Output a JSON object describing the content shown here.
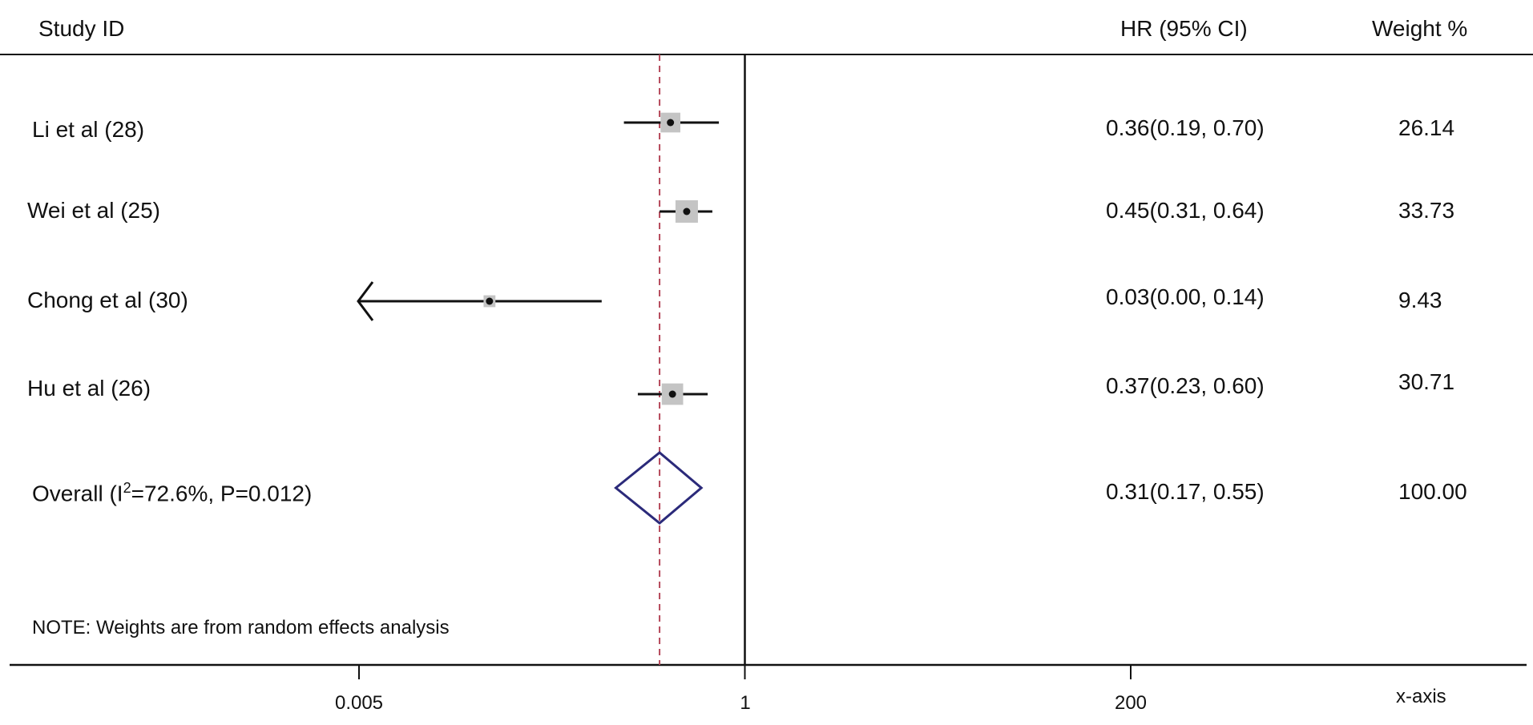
{
  "chart_data": {
    "type": "forest",
    "headers": {
      "study": "Study ID",
      "effect": "HR (95% CI)",
      "weight": "Weight %"
    },
    "x_scale": "log",
    "xlim": [
      0.005,
      200
    ],
    "x_ticks": [
      {
        "value": 0.005,
        "label": "0.005"
      },
      {
        "value": 1,
        "label": "1"
      },
      {
        "value": 200,
        "label": "200"
      }
    ],
    "xlabel": "x-axis",
    "reference_line": 1,
    "overall_line": 0.31,
    "studies": [
      {
        "label": "Li et al (28)",
        "hr": 0.36,
        "lo": 0.19,
        "hi": 0.7,
        "effect_text": "0.36(0.19, 0.70)",
        "weight": 26.14,
        "weight_text": "26.14"
      },
      {
        "label": "Wei et al (25)",
        "hr": 0.45,
        "lo": 0.31,
        "hi": 0.64,
        "effect_text": "0.45(0.31, 0.64)",
        "weight": 33.73,
        "weight_text": "33.73"
      },
      {
        "label": "Chong et al (30)",
        "hr": 0.03,
        "lo": 0.0,
        "hi": 0.14,
        "effect_text": "0.03(0.00, 0.14)",
        "weight": 9.43,
        "weight_text": "9.43",
        "lower_truncated": true
      },
      {
        "label": "Hu et al (26)",
        "hr": 0.37,
        "lo": 0.23,
        "hi": 0.6,
        "effect_text": "0.37(0.23, 0.60)",
        "weight": 30.71,
        "weight_text": "30.71"
      }
    ],
    "overall": {
      "label_prefix": "Overall (I",
      "label_sup": "2",
      "label_suffix": "=72.6%, P=0.012)",
      "hr": 0.31,
      "lo": 0.17,
      "hi": 0.55,
      "effect_text": "0.31(0.17, 0.55)",
      "weight_text": "100.00"
    },
    "note": "NOTE: Weights are from random effects analysis",
    "colors": {
      "line": "#111111",
      "box": "#c4c4c4",
      "diamond": "#2b2a7a",
      "overall_line": "#b5485a"
    }
  }
}
